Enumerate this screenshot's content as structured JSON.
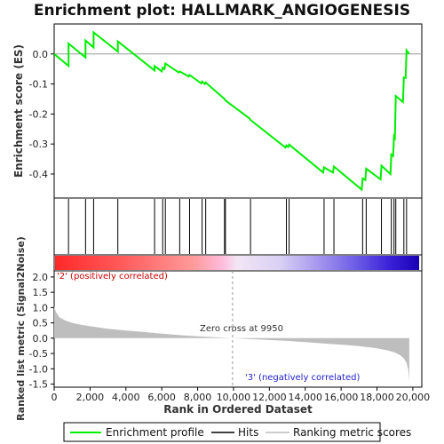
{
  "title": "Enrichment plot: HALLMARK_ANGIOGENESIS",
  "colors": {
    "profile": "#00ee00",
    "hits": "#000000",
    "metric_fill": "#bebebe",
    "zero_line": "#9a9a9a",
    "label_pos": "#cc0000",
    "label_neg": "#2222cc"
  },
  "chart_data": [
    {
      "type": "line",
      "name": "enrichment-score",
      "ylabel": "Enrichment score (ES)",
      "xlim": [
        0,
        20500
      ],
      "ylim": [
        -0.48,
        0.1
      ],
      "yticks": [
        0.0,
        -0.1,
        -0.2,
        -0.3,
        -0.4
      ],
      "ytick_labels": [
        "0.0",
        "-0.1",
        "-0.2",
        "-0.3",
        "-0.4"
      ],
      "series": [
        {
          "name": "Enrichment profile",
          "x": [
            0,
            800,
            800,
            1750,
            1750,
            2200,
            2200,
            3550,
            3550,
            5600,
            5600,
            6000,
            6050,
            6150,
            6200,
            6950,
            7000,
            7500,
            7550,
            8200,
            8250,
            8400,
            8450,
            9500,
            9550,
            10900,
            10950,
            12900,
            12950,
            13050,
            13100,
            15000,
            15050,
            15550,
            15600,
            17150,
            17200,
            17350,
            17400,
            18200,
            18250,
            18750,
            18800,
            18900,
            18950,
            19000,
            19050,
            19450,
            19500,
            19600,
            19650,
            19800
          ],
          "y": [
            0.0,
            -0.04,
            0.035,
            -0.012,
            0.045,
            0.022,
            0.072,
            0.008,
            0.042,
            -0.055,
            -0.04,
            -0.058,
            -0.046,
            -0.05,
            -0.032,
            -0.062,
            -0.058,
            -0.075,
            -0.07,
            -0.098,
            -0.092,
            -0.1,
            -0.095,
            -0.15,
            -0.155,
            -0.215,
            -0.22,
            -0.312,
            -0.305,
            -0.31,
            -0.302,
            -0.395,
            -0.378,
            -0.395,
            -0.375,
            -0.452,
            -0.415,
            -0.42,
            -0.382,
            -0.418,
            -0.372,
            -0.4,
            -0.335,
            -0.34,
            -0.275,
            -0.28,
            -0.14,
            -0.16,
            -0.078,
            -0.08,
            0.012,
            0.0
          ]
        }
      ]
    },
    {
      "type": "scatter",
      "name": "hits",
      "series": [
        {
          "name": "Hits",
          "x": [
            800,
            1750,
            2200,
            3550,
            5600,
            6050,
            6200,
            7000,
            7550,
            8250,
            8450,
            9500,
            9550,
            10950,
            12950,
            13100,
            15050,
            15600,
            17200,
            17400,
            18250,
            18800,
            18950,
            19050,
            19500,
            19650
          ]
        }
      ]
    },
    {
      "type": "area",
      "name": "ranked-list-metric",
      "xlabel": "Rank in Ordered Dataset",
      "ylabel": "Ranked list metric (Signal2Noise)",
      "xlim": [
        0,
        20500
      ],
      "ylim": [
        -1.6,
        2.2
      ],
      "xticks": [
        0,
        2000,
        4000,
        6000,
        8000,
        10000,
        12000,
        14000,
        16000,
        18000,
        20000
      ],
      "xtick_labels": [
        "0",
        "2,000",
        "4,000",
        "6,000",
        "8,000",
        "10,000",
        "12,000",
        "14,000",
        "16,000",
        "18,000",
        "20,000"
      ],
      "yticks": [
        2.0,
        1.5,
        1.0,
        0.5,
        0.0,
        -0.5,
        -1.0,
        -1.5
      ],
      "ytick_labels": [
        "2.0",
        "1.5",
        "1.0",
        "0.5",
        "0.0",
        "-0.5",
        "-1.0",
        "-1.5"
      ],
      "series": [
        {
          "name": "Ranking metric scores",
          "x": [
            0,
            100,
            300,
            600,
            1000,
            1500,
            2000,
            3000,
            4000,
            5000,
            6000,
            7000,
            8000,
            9000,
            9950,
            11000,
            12000,
            13000,
            14000,
            15000,
            16000,
            17000,
            18000,
            18600,
            19000,
            19300,
            19500,
            19650,
            19750,
            19800
          ],
          "y": [
            1.05,
            0.85,
            0.68,
            0.58,
            0.5,
            0.44,
            0.39,
            0.31,
            0.25,
            0.2,
            0.15,
            0.1,
            0.06,
            0.03,
            0.0,
            -0.03,
            -0.06,
            -0.09,
            -0.13,
            -0.17,
            -0.21,
            -0.26,
            -0.33,
            -0.4,
            -0.47,
            -0.56,
            -0.66,
            -0.8,
            -1.05,
            -1.42
          ]
        }
      ],
      "annotations": {
        "zero_cross": "Zero cross at 9950",
        "zero_cross_x": 9950,
        "positive": "'2' (positively correlated)",
        "negative": "'3' (negatively correlated)"
      }
    }
  ],
  "legend": {
    "items": [
      "Enrichment profile",
      "Hits",
      "Ranking metric scores"
    ]
  }
}
